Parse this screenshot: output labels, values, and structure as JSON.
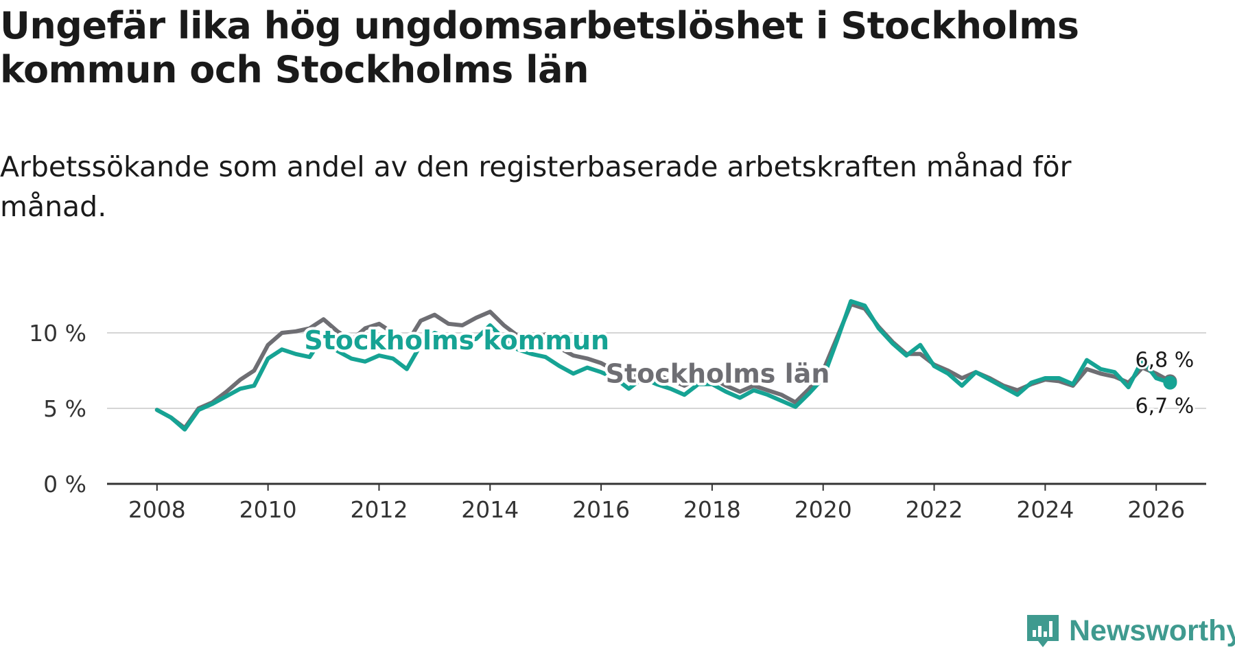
{
  "title": "Ungefär lika hög ungdomsarbetslöshet i Stockholms kommun och Stockholms län",
  "subtitle": "Arbetssökande som andel av den registerbaserade arbetskraften månad för månad.",
  "brand": {
    "name": "Newsworthy",
    "color": "#3f9a8f",
    "icon": "bar-chart-speech-bubble-icon"
  },
  "chart_data": {
    "type": "line",
    "xlim": [
      2007.1,
      2026.9
    ],
    "ylim": [
      0,
      12.5
    ],
    "x_ticks": [
      2008,
      2010,
      2012,
      2014,
      2016,
      2018,
      2020,
      2022,
      2024,
      2026
    ],
    "x_tick_labels": [
      "2008",
      "2010",
      "2012",
      "2014",
      "2016",
      "2018",
      "2020",
      "2022",
      "2024",
      "2026"
    ],
    "y_ticks": [
      0,
      5,
      10
    ],
    "y_tick_labels": [
      "0 %",
      "5 %",
      "10 %"
    ],
    "grid": true,
    "series": [
      {
        "name": "Stockholms län",
        "color": "#6e6e73",
        "label_year": 2018.1,
        "label_value": 6.7,
        "end_label": "6,8 %",
        "points": [
          [
            2008.0,
            4.9
          ],
          [
            2008.25,
            4.4
          ],
          [
            2008.5,
            3.7
          ],
          [
            2008.75,
            5.0
          ],
          [
            2009.0,
            5.4
          ],
          [
            2009.25,
            6.1
          ],
          [
            2009.5,
            6.9
          ],
          [
            2009.75,
            7.5
          ],
          [
            2010.0,
            9.2
          ],
          [
            2010.25,
            10.0
          ],
          [
            2010.5,
            10.1
          ],
          [
            2010.75,
            10.3
          ],
          [
            2011.0,
            10.9
          ],
          [
            2011.25,
            10.1
          ],
          [
            2011.5,
            9.5
          ],
          [
            2011.75,
            10.3
          ],
          [
            2012.0,
            10.6
          ],
          [
            2012.25,
            10.0
          ],
          [
            2012.5,
            9.3
          ],
          [
            2012.75,
            10.8
          ],
          [
            2013.0,
            11.2
          ],
          [
            2013.25,
            10.6
          ],
          [
            2013.5,
            10.5
          ],
          [
            2013.75,
            11.0
          ],
          [
            2014.0,
            11.4
          ],
          [
            2014.25,
            10.5
          ],
          [
            2014.5,
            9.8
          ],
          [
            2014.75,
            9.5
          ],
          [
            2015.0,
            9.9
          ],
          [
            2015.25,
            9.0
          ],
          [
            2015.5,
            8.5
          ],
          [
            2015.75,
            8.3
          ],
          [
            2016.0,
            8.0
          ],
          [
            2016.25,
            7.5
          ],
          [
            2016.5,
            6.9
          ],
          [
            2016.75,
            7.6
          ],
          [
            2017.0,
            7.2
          ],
          [
            2017.25,
            6.9
          ],
          [
            2017.5,
            6.5
          ],
          [
            2017.75,
            7.0
          ],
          [
            2018.0,
            7.0
          ],
          [
            2018.25,
            6.5
          ],
          [
            2018.5,
            6.1
          ],
          [
            2018.75,
            6.5
          ],
          [
            2019.0,
            6.2
          ],
          [
            2019.25,
            5.9
          ],
          [
            2019.5,
            5.4
          ],
          [
            2019.75,
            6.3
          ],
          [
            2020.0,
            7.5
          ],
          [
            2020.25,
            9.7
          ],
          [
            2020.5,
            11.9
          ],
          [
            2020.75,
            11.6
          ],
          [
            2021.0,
            10.4
          ],
          [
            2021.25,
            9.4
          ],
          [
            2021.5,
            8.6
          ],
          [
            2021.75,
            8.6
          ],
          [
            2022.0,
            7.9
          ],
          [
            2022.25,
            7.5
          ],
          [
            2022.5,
            7.0
          ],
          [
            2022.75,
            7.4
          ],
          [
            2023.0,
            7.0
          ],
          [
            2023.25,
            6.5
          ],
          [
            2023.5,
            6.2
          ],
          [
            2023.75,
            6.6
          ],
          [
            2024.0,
            6.9
          ],
          [
            2024.25,
            6.8
          ],
          [
            2024.5,
            6.5
          ],
          [
            2024.75,
            7.6
          ],
          [
            2025.0,
            7.3
          ],
          [
            2025.25,
            7.1
          ],
          [
            2025.5,
            6.7
          ],
          [
            2025.75,
            7.7
          ],
          [
            2026.0,
            7.3
          ],
          [
            2026.25,
            6.8
          ]
        ]
      },
      {
        "name": "Stockholms kommun",
        "color": "#16a394",
        "label_year": 2013.4,
        "label_value": 8.9,
        "end_label": "6,7 %",
        "points": [
          [
            2008.0,
            4.9
          ],
          [
            2008.25,
            4.4
          ],
          [
            2008.5,
            3.6
          ],
          [
            2008.75,
            4.9
          ],
          [
            2009.0,
            5.3
          ],
          [
            2009.25,
            5.8
          ],
          [
            2009.5,
            6.3
          ],
          [
            2009.75,
            6.5
          ],
          [
            2010.0,
            8.3
          ],
          [
            2010.25,
            8.9
          ],
          [
            2010.5,
            8.6
          ],
          [
            2010.75,
            8.4
          ],
          [
            2011.0,
            9.8
          ],
          [
            2011.25,
            8.8
          ],
          [
            2011.5,
            8.3
          ],
          [
            2011.75,
            8.1
          ],
          [
            2012.0,
            8.5
          ],
          [
            2012.25,
            8.3
          ],
          [
            2012.5,
            7.6
          ],
          [
            2012.75,
            9.2
          ],
          [
            2013.0,
            10.0
          ],
          [
            2013.25,
            9.6
          ],
          [
            2013.5,
            9.4
          ],
          [
            2013.75,
            9.6
          ],
          [
            2014.0,
            10.5
          ],
          [
            2014.25,
            9.6
          ],
          [
            2014.5,
            8.9
          ],
          [
            2014.75,
            8.6
          ],
          [
            2015.0,
            8.4
          ],
          [
            2015.25,
            7.8
          ],
          [
            2015.5,
            7.3
          ],
          [
            2015.75,
            7.7
          ],
          [
            2016.0,
            7.4
          ],
          [
            2016.25,
            7.0
          ],
          [
            2016.5,
            6.3
          ],
          [
            2016.75,
            7.0
          ],
          [
            2017.0,
            6.6
          ],
          [
            2017.25,
            6.3
          ],
          [
            2017.5,
            5.9
          ],
          [
            2017.75,
            6.6
          ],
          [
            2018.0,
            6.6
          ],
          [
            2018.25,
            6.1
          ],
          [
            2018.5,
            5.7
          ],
          [
            2018.75,
            6.2
          ],
          [
            2019.0,
            5.9
          ],
          [
            2019.25,
            5.5
          ],
          [
            2019.5,
            5.1
          ],
          [
            2019.75,
            6.0
          ],
          [
            2020.0,
            7.0
          ],
          [
            2020.25,
            9.5
          ],
          [
            2020.5,
            12.1
          ],
          [
            2020.75,
            11.8
          ],
          [
            2021.0,
            10.3
          ],
          [
            2021.25,
            9.3
          ],
          [
            2021.5,
            8.5
          ],
          [
            2021.75,
            9.2
          ],
          [
            2022.0,
            7.8
          ],
          [
            2022.25,
            7.3
          ],
          [
            2022.5,
            6.5
          ],
          [
            2022.75,
            7.4
          ],
          [
            2023.0,
            6.9
          ],
          [
            2023.25,
            6.4
          ],
          [
            2023.5,
            5.9
          ],
          [
            2023.75,
            6.7
          ],
          [
            2024.0,
            7.0
          ],
          [
            2024.25,
            7.0
          ],
          [
            2024.5,
            6.6
          ],
          [
            2024.75,
            8.2
          ],
          [
            2025.0,
            7.6
          ],
          [
            2025.25,
            7.4
          ],
          [
            2025.5,
            6.4
          ],
          [
            2025.75,
            8.2
          ],
          [
            2026.0,
            7.0
          ],
          [
            2026.25,
            6.7
          ]
        ]
      }
    ]
  }
}
